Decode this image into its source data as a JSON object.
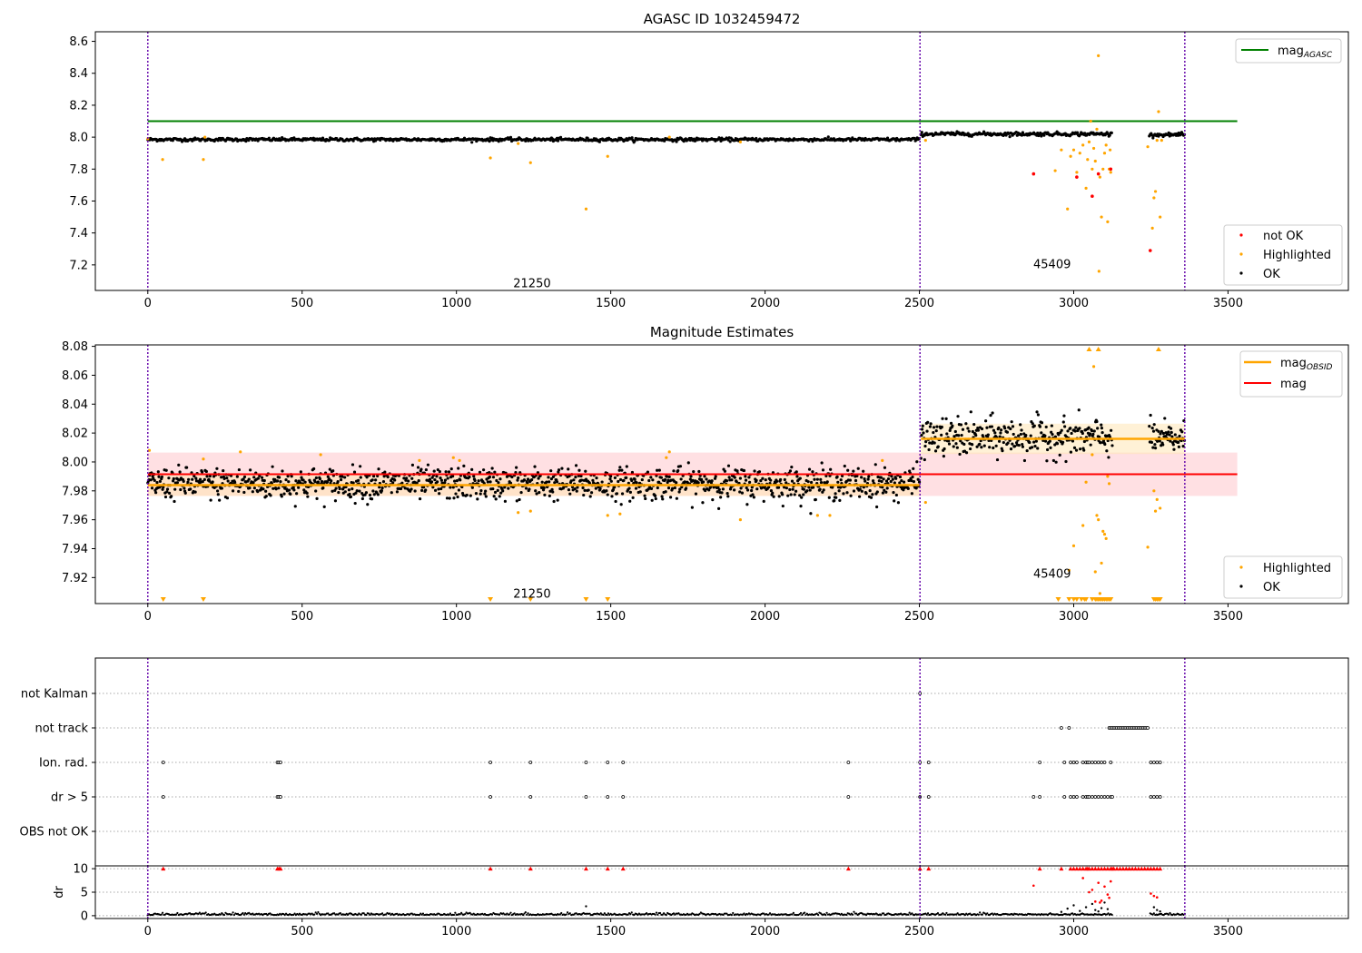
{
  "chart_data": [
    {
      "type": "scatter",
      "title": "AGASC ID 1032459472",
      "xlim": [
        -170,
        3890
      ],
      "ylim": [
        7.04,
        8.66
      ],
      "yticks": [
        7.2,
        7.4,
        7.6,
        7.8,
        8.0,
        8.2,
        8.4,
        8.6
      ],
      "xticks": [
        0,
        500,
        1000,
        1500,
        2000,
        2500,
        3000,
        3500
      ],
      "obs_boundaries": [
        0,
        2502,
        3360
      ],
      "obs_labels": [
        {
          "text": "21250",
          "x": 1245,
          "y": 7.06
        },
        {
          "text": "45409",
          "x": 2930,
          "y": 7.18
        }
      ],
      "reference_line": {
        "name": "mag",
        "subscript": "AGASC",
        "y": 8.1,
        "x_range": [
          0,
          3530
        ],
        "color": "#008000"
      },
      "legend_top": "upper right",
      "legend_bottom": "lower right",
      "legend_entries": [
        {
          "name": "not OK",
          "color": "#ff0000"
        },
        {
          "name": "Highlighted",
          "color": "#ffa500"
        },
        {
          "name": "OK",
          "color": "#000000"
        }
      ],
      "segments": [
        {
          "x_range": [
            0,
            2500
          ],
          "level": 7.985,
          "noise": 0.005
        },
        {
          "x_range": [
            2505,
            3125
          ],
          "level": 8.02,
          "noise": 0.006
        },
        {
          "x_range": [
            3245,
            3360
          ],
          "level": 8.015,
          "noise": 0.005
        }
      ],
      "highlighted_points": [
        [
          0,
          7.99
        ],
        [
          48,
          7.86
        ],
        [
          180,
          7.86
        ],
        [
          185,
          8.0
        ],
        [
          1110,
          7.87
        ],
        [
          1240,
          7.84
        ],
        [
          1200,
          7.96
        ],
        [
          1420,
          7.55
        ],
        [
          1490,
          7.88
        ],
        [
          1690,
          8.0
        ],
        [
          1920,
          7.97
        ],
        [
          2520,
          7.98
        ],
        [
          2940,
          7.79
        ],
        [
          2960,
          7.92
        ],
        [
          2980,
          7.55
        ],
        [
          2990,
          7.88
        ],
        [
          3000,
          7.92
        ],
        [
          3010,
          7.78
        ],
        [
          3020,
          7.9
        ],
        [
          3030,
          7.95
        ],
        [
          3040,
          7.68
        ],
        [
          3045,
          7.86
        ],
        [
          3050,
          7.97
        ],
        [
          3055,
          8.1
        ],
        [
          3060,
          7.8
        ],
        [
          3065,
          7.93
        ],
        [
          3070,
          7.85
        ],
        [
          3075,
          8.05
        ],
        [
          3080,
          8.51
        ],
        [
          3082,
          7.16
        ],
        [
          3085,
          7.75
        ],
        [
          3090,
          7.5
        ],
        [
          3095,
          7.8
        ],
        [
          3100,
          7.9
        ],
        [
          3105,
          7.95
        ],
        [
          3110,
          7.47
        ],
        [
          3115,
          7.8
        ],
        [
          3118,
          7.92
        ],
        [
          3120,
          7.78
        ],
        [
          3240,
          7.94
        ],
        [
          3255,
          7.43
        ],
        [
          3260,
          7.62
        ],
        [
          3265,
          7.66
        ],
        [
          3270,
          7.98
        ],
        [
          3275,
          8.16
        ],
        [
          3280,
          7.5
        ],
        [
          3285,
          7.98
        ]
      ],
      "not_ok_points": [
        [
          2870,
          7.77
        ],
        [
          3010,
          7.75
        ],
        [
          3060,
          7.63
        ],
        [
          3080,
          7.77
        ],
        [
          3120,
          7.8
        ],
        [
          3248,
          7.29
        ]
      ]
    },
    {
      "type": "scatter",
      "title": "Magnitude Estimates",
      "xlim": [
        -170,
        3890
      ],
      "ylim": [
        7.902,
        8.081
      ],
      "yticks": [
        7.92,
        7.94,
        7.96,
        7.98,
        8.0,
        8.02,
        8.04,
        8.06,
        8.08
      ],
      "xticks": [
        0,
        500,
        1000,
        1500,
        2000,
        2500,
        3000,
        3500
      ],
      "obs_boundaries": [
        0,
        2502,
        3360
      ],
      "obs_labels": [
        {
          "text": "21250",
          "x": 1245,
          "y": 7.906
        },
        {
          "text": "45409",
          "x": 2930,
          "y": 7.92
        }
      ],
      "mag": {
        "y": 7.9915,
        "band": [
          7.9765,
          8.0065
        ],
        "x_range": [
          0,
          3530
        ],
        "color": "#ff0000",
        "band_color": "#ffe0e3"
      },
      "mag_obsid": [
        {
          "x_range": [
            0,
            2500
          ],
          "y": 7.984,
          "band": [
            7.9765,
            7.9915
          ]
        },
        {
          "x_range": [
            2505,
            3360
          ],
          "y": 8.016,
          "band": [
            8.0055,
            8.0265
          ]
        }
      ],
      "legend_top": "upper right",
      "legend_bottom": "lower right",
      "legend_top_entries": [
        {
          "name": "mag",
          "subscript": "OBSID",
          "color": "#ffa500"
        },
        {
          "name": "mag",
          "color": "#ff0000"
        }
      ],
      "legend_bottom_entries": [
        {
          "name": "Highlighted",
          "color": "#ffa500"
        },
        {
          "name": "OK",
          "color": "#000000"
        }
      ],
      "segments": [
        {
          "x_range": [
            0,
            2500
          ],
          "level": 7.985,
          "noise": 0.0055
        },
        {
          "x_range": [
            2505,
            3125
          ],
          "level": 8.017,
          "noise": 0.0065
        },
        {
          "x_range": [
            3245,
            3360
          ],
          "level": 8.016,
          "noise": 0.0055
        }
      ],
      "highlighted_points": [
        [
          5,
          8.008
        ],
        [
          180,
          8.002
        ],
        [
          300,
          8.007
        ],
        [
          560,
          8.005
        ],
        [
          880,
          8.001
        ],
        [
          990,
          8.003
        ],
        [
          1010,
          8.001
        ],
        [
          1200,
          7.965
        ],
        [
          1240,
          7.966
        ],
        [
          1490,
          7.963
        ],
        [
          1530,
          7.964
        ],
        [
          1680,
          8.003
        ],
        [
          1690,
          8.007
        ],
        [
          1920,
          7.96
        ],
        [
          2170,
          7.963
        ],
        [
          2210,
          7.963
        ],
        [
          2380,
          8.001
        ],
        [
          2520,
          7.972
        ],
        [
          2985,
          7.925
        ],
        [
          3000,
          7.942
        ],
        [
          3030,
          7.956
        ],
        [
          3040,
          7.986
        ],
        [
          3060,
          8.005
        ],
        [
          3065,
          8.066
        ],
        [
          3070,
          7.924
        ],
        [
          3075,
          7.963
        ],
        [
          3080,
          7.96
        ],
        [
          3085,
          7.909
        ],
        [
          3090,
          7.93
        ],
        [
          3095,
          7.952
        ],
        [
          3100,
          7.95
        ],
        [
          3105,
          7.947
        ],
        [
          3110,
          7.99
        ],
        [
          3115,
          7.985
        ],
        [
          3240,
          7.941
        ],
        [
          3260,
          7.98
        ],
        [
          3265,
          7.966
        ],
        [
          3270,
          7.974
        ],
        [
          3280,
          7.968
        ]
      ],
      "clipped_low": [
        50,
        180,
        1110,
        1240,
        1420,
        1490,
        2950,
        2985,
        3000,
        3010,
        3025,
        3035,
        3040,
        3060,
        3070,
        3075,
        3080,
        3085,
        3090,
        3095,
        3100,
        3105,
        3110,
        3115,
        3120,
        3260,
        3265,
        3270,
        3275,
        3280
      ],
      "clipped_high": [
        3050,
        3080,
        3275
      ]
    },
    {
      "type": "scatter",
      "title": "",
      "xlim": [
        -170,
        3890
      ],
      "xticks": [
        0,
        500,
        1000,
        1500,
        2000,
        2500,
        3000,
        3500
      ],
      "obs_boundaries": [
        0,
        2502,
        3360
      ],
      "flag_rows": [
        "not Kalman",
        "not track",
        "Ion. rad.",
        "dr > 5",
        "OBS not OK"
      ],
      "flag_points": {
        "not Kalman": [
          2502
        ],
        "not track": [
          2960,
          2985,
          3115,
          3120,
          3125,
          3130,
          3135,
          3140,
          3145,
          3150,
          3155,
          3160,
          3165,
          3170,
          3175,
          3180,
          3185,
          3190,
          3195,
          3200,
          3205,
          3210,
          3215,
          3220,
          3225,
          3230,
          3235,
          3240
        ],
        "Ion. rad.": [
          50,
          420,
          425,
          430,
          1110,
          1240,
          1420,
          1490,
          1540,
          2270,
          2502,
          2530,
          2890,
          2970,
          2990,
          3000,
          3010,
          3030,
          3040,
          3045,
          3050,
          3060,
          3070,
          3080,
          3090,
          3100,
          3120,
          3250,
          3260,
          3270,
          3280
        ],
        "dr > 5": [
          50,
          420,
          425,
          430,
          1110,
          1240,
          1420,
          1490,
          1540,
          2270,
          2502,
          2530,
          2870,
          2890,
          2970,
          2990,
          3000,
          3010,
          3030,
          3040,
          3045,
          3050,
          3060,
          3070,
          3080,
          3090,
          3100,
          3110,
          3120,
          3125,
          3250,
          3260,
          3270,
          3280
        ],
        "OBS not OK": []
      }
    },
    {
      "type": "scatter",
      "title": "",
      "ylabel": "dr",
      "xlim": [
        -170,
        3890
      ],
      "ylim": [
        -0.6,
        10.6
      ],
      "yticks": [
        0,
        5,
        10
      ],
      "xticks": [
        0,
        500,
        1000,
        1500,
        2000,
        2500,
        3000,
        3500
      ],
      "obs_boundaries": [
        0,
        2502,
        3360
      ],
      "clip_value": 10,
      "clipped_points": [
        50,
        420,
        425,
        430,
        1110,
        1240,
        1420,
        1490,
        1540,
        2270,
        2502,
        2530,
        2890,
        2960,
        2990,
        3000,
        3010,
        3020,
        3030,
        3040,
        3045,
        3050,
        3060,
        3070,
        3080,
        3090,
        3100,
        3110,
        3120,
        3125,
        3130,
        3140,
        3150,
        3160,
        3170,
        3180,
        3190,
        3200,
        3210,
        3220,
        3230,
        3240,
        3250,
        3260,
        3270,
        3280
      ],
      "red_points": [
        [
          2870,
          6.4
        ],
        [
          3030,
          8.0
        ],
        [
          3050,
          5.0
        ],
        [
          3060,
          5.5
        ],
        [
          3070,
          3.0
        ],
        [
          3080,
          7.0
        ],
        [
          3085,
          2.8
        ],
        [
          3090,
          3.2
        ],
        [
          3100,
          6.2
        ],
        [
          3110,
          4.5
        ],
        [
          3115,
          3.8
        ],
        [
          3120,
          7.3
        ],
        [
          3250,
          4.7
        ],
        [
          3260,
          4.2
        ],
        [
          3270,
          3.9
        ]
      ],
      "scatter_points": [
        [
          1420,
          2.0
        ],
        [
          2960,
          0.8
        ],
        [
          2980,
          1.5
        ],
        [
          3000,
          2.2
        ],
        [
          3020,
          1.0
        ],
        [
          3040,
          1.8
        ],
        [
          3060,
          2.5
        ],
        [
          3070,
          1.2
        ],
        [
          3080,
          0.9
        ],
        [
          3090,
          1.6
        ],
        [
          3100,
          2.8
        ],
        [
          3110,
          1.4
        ],
        [
          3260,
          1.8
        ],
        [
          3270,
          1.2
        ],
        [
          3280,
          0.9
        ]
      ],
      "baseline": {
        "level": 0.15,
        "spread": 0.2
      }
    }
  ]
}
